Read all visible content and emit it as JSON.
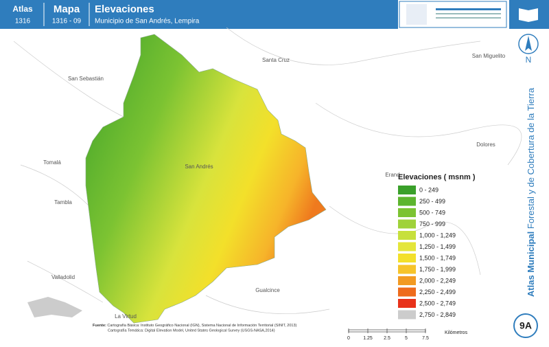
{
  "header": {
    "atlas_label": "Atlas",
    "atlas_code": "1316",
    "map_label": "Mapa",
    "map_code": "1316 - 09",
    "title": "Elevaciones",
    "subtitle": "Municipio de San Andrés, Lempira"
  },
  "sidebar": {
    "north": "N",
    "title_bold": "Atlas Municipal",
    "title_rest": "Forestal y de Cobertura de la Tierra",
    "badge": "9A"
  },
  "places": [
    "San Sebastián",
    "Santa Cruz",
    "San Miguelito",
    "Tomalá",
    "San Andrés",
    "Tambla",
    "Dolores",
    "Erand",
    "Valladolid",
    "Gualcince",
    "La Virtud"
  ],
  "legend": {
    "title": "Elevaciones ( msnm )",
    "items": [
      {
        "label": "0 - 249",
        "color": "#3aa02a"
      },
      {
        "label": "250 - 499",
        "color": "#5db52e"
      },
      {
        "label": "500 - 749",
        "color": "#7cc332"
      },
      {
        "label": "750 - 999",
        "color": "#9fd23a"
      },
      {
        "label": "1,000 - 1,249",
        "color": "#c7e03c"
      },
      {
        "label": "1,250 - 1,499",
        "color": "#e4e63a"
      },
      {
        "label": "1,500 - 1,749",
        "color": "#f3e02a"
      },
      {
        "label": "1,750 - 1,999",
        "color": "#f6c42a"
      },
      {
        "label": "2,000 - 2,249",
        "color": "#f29a22"
      },
      {
        "label": "2,250 - 2,499",
        "color": "#ee6b1c"
      },
      {
        "label": "2,500 - 2,749",
        "color": "#e8321a"
      },
      {
        "label": "2,750 - 2,849",
        "color": "#cccccc"
      }
    ]
  },
  "scale": {
    "ticks": [
      "0",
      "1.25",
      "2.5",
      "5",
      "7.5"
    ],
    "unit": "Kilómetros"
  },
  "footer": {
    "source_label": "Fuente:",
    "line1": "Cartografía Básica: Instituto Geográfico Nacional (IGN), Sistema Nacional de Información Territorial (SINIT, 2013)",
    "line2": "Cartografía Temática: Digital Elevation Model, United States Geological Survey (USGS-NASA,2014)"
  }
}
